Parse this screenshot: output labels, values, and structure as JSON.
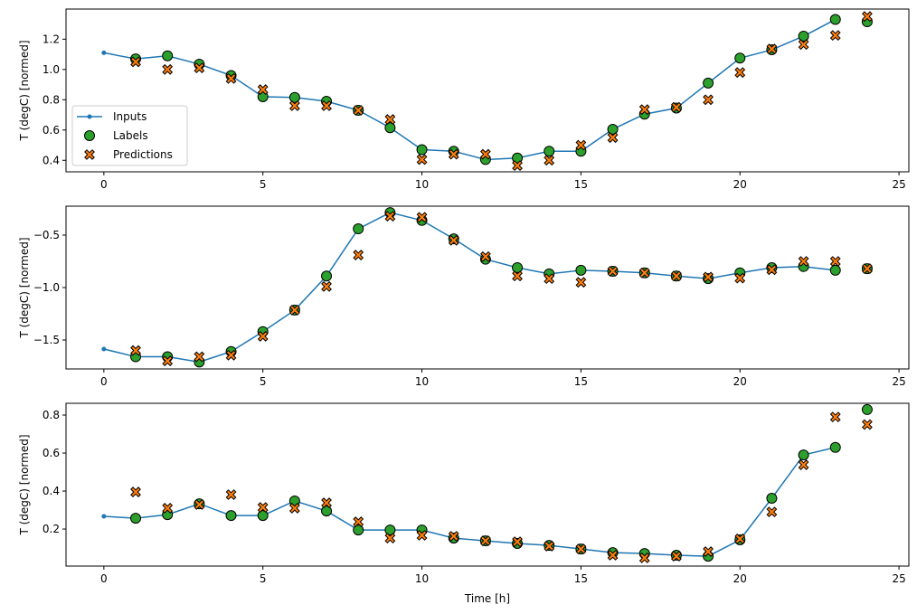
{
  "chart_data": [
    {
      "type": "line",
      "ylabel": "T (degC) [normed]",
      "xlabel": "",
      "xlim": [
        -1.19,
        25.31
      ],
      "ylim": [
        0.324,
        1.399
      ],
      "xticks": [
        0,
        5,
        10,
        15,
        20,
        25
      ],
      "yticks": [
        0.4,
        0.6,
        0.8,
        1.0,
        1.2
      ],
      "ytick_labels": [
        "0.4",
        "0.6",
        "0.8",
        "1.0",
        "1.2"
      ],
      "legend": {
        "placement": "lower-left",
        "entries": [
          "Inputs",
          "Labels",
          "Predictions"
        ]
      },
      "series": [
        {
          "name": "Inputs",
          "x": [
            0,
            1,
            2,
            3,
            4,
            5,
            6,
            7,
            8,
            9,
            10,
            11,
            12,
            13,
            14,
            15,
            16,
            17,
            18,
            19,
            20,
            21,
            22,
            23
          ],
          "values": [
            1.11,
            1.07,
            1.09,
            1.035,
            0.96,
            0.82,
            0.815,
            0.79,
            0.73,
            0.615,
            0.47,
            0.46,
            0.405,
            0.415,
            0.46,
            0.46,
            0.605,
            0.705,
            0.745,
            0.91,
            1.075,
            1.13,
            1.22,
            1.33
          ]
        },
        {
          "name": "Labels",
          "x": [
            1,
            2,
            3,
            4,
            5,
            6,
            7,
            8,
            9,
            10,
            11,
            12,
            13,
            14,
            15,
            16,
            17,
            18,
            19,
            20,
            21,
            22,
            23,
            24
          ],
          "values": [
            1.07,
            1.09,
            1.035,
            0.96,
            0.82,
            0.815,
            0.79,
            0.73,
            0.615,
            0.47,
            0.46,
            0.405,
            0.415,
            0.46,
            0.46,
            0.605,
            0.705,
            0.745,
            0.91,
            1.075,
            1.13,
            1.22,
            1.33,
            1.315
          ]
        },
        {
          "name": "Predictions",
          "x": [
            1,
            2,
            3,
            4,
            5,
            6,
            7,
            8,
            9,
            10,
            11,
            12,
            13,
            14,
            15,
            16,
            17,
            18,
            19,
            20,
            21,
            22,
            23,
            24
          ],
          "values": [
            1.05,
            1.0,
            1.01,
            0.94,
            0.867,
            0.76,
            0.76,
            0.73,
            0.67,
            0.405,
            0.44,
            0.44,
            0.365,
            0.4,
            0.5,
            0.55,
            0.735,
            0.75,
            0.8,
            0.98,
            1.135,
            1.165,
            1.225,
            1.35
          ]
        }
      ]
    },
    {
      "type": "line",
      "ylabel": "T (degC) [normed]",
      "xlabel": "",
      "xlim": [
        -1.19,
        25.31
      ],
      "ylim": [
        -1.776,
        -0.224
      ],
      "xticks": [
        0,
        5,
        10,
        15,
        20,
        25
      ],
      "yticks": [
        -1.5,
        -1.0,
        -0.5
      ],
      "ytick_labels": [
        "−1.5",
        "−1.0",
        "−0.5"
      ],
      "series": [
        {
          "name": "Inputs",
          "x": [
            0,
            1,
            2,
            3,
            4,
            5,
            6,
            7,
            8,
            9,
            10,
            11,
            12,
            13,
            14,
            15,
            16,
            17,
            18,
            19,
            20,
            21,
            22,
            23
          ],
          "values": [
            -1.586,
            -1.66,
            -1.66,
            -1.71,
            -1.61,
            -1.42,
            -1.215,
            -0.89,
            -0.44,
            -0.285,
            -0.36,
            -0.535,
            -0.73,
            -0.81,
            -0.87,
            -0.835,
            -0.845,
            -0.86,
            -0.89,
            -0.915,
            -0.86,
            -0.81,
            -0.8,
            -0.835
          ]
        },
        {
          "name": "Labels",
          "x": [
            1,
            2,
            3,
            4,
            5,
            6,
            7,
            8,
            9,
            10,
            11,
            12,
            13,
            14,
            15,
            16,
            17,
            18,
            19,
            20,
            21,
            22,
            23,
            24
          ],
          "values": [
            -1.66,
            -1.66,
            -1.71,
            -1.61,
            -1.42,
            -1.215,
            -0.89,
            -0.44,
            -0.285,
            -0.36,
            -0.535,
            -0.73,
            -0.81,
            -0.87,
            -0.835,
            -0.845,
            -0.86,
            -0.89,
            -0.915,
            -0.86,
            -0.81,
            -0.8,
            -0.835,
            -0.82
          ]
        },
        {
          "name": "Predictions",
          "x": [
            1,
            2,
            3,
            4,
            5,
            6,
            7,
            8,
            9,
            10,
            11,
            12,
            13,
            14,
            15,
            16,
            17,
            18,
            19,
            20,
            21,
            22,
            23,
            24
          ],
          "values": [
            -1.6,
            -1.7,
            -1.66,
            -1.645,
            -1.465,
            -1.215,
            -0.99,
            -0.69,
            -0.32,
            -0.33,
            -0.55,
            -0.705,
            -0.89,
            -0.915,
            -0.95,
            -0.845,
            -0.86,
            -0.89,
            -0.9,
            -0.91,
            -0.83,
            -0.75,
            -0.75,
            -0.82
          ]
        }
      ]
    },
    {
      "type": "line",
      "ylabel": "T (degC) [normed]",
      "xlabel": "Time [h]",
      "xlim": [
        -1.19,
        25.31
      ],
      "ylim": [
        0.005,
        0.862
      ],
      "xticks": [
        0,
        5,
        10,
        15,
        20,
        25
      ],
      "yticks": [
        0.2,
        0.4,
        0.6,
        0.8
      ],
      "ytick_labels": [
        "0.2",
        "0.4",
        "0.6",
        "0.8"
      ],
      "series": [
        {
          "name": "Inputs",
          "x": [
            0,
            1,
            2,
            3,
            4,
            5,
            6,
            7,
            8,
            9,
            10,
            11,
            12,
            13,
            14,
            15,
            16,
            17,
            18,
            19,
            20,
            21,
            22,
            23
          ],
          "values": [
            0.267,
            0.257,
            0.276,
            0.333,
            0.271,
            0.271,
            0.348,
            0.295,
            0.195,
            0.195,
            0.195,
            0.152,
            0.138,
            0.124,
            0.114,
            0.095,
            0.076,
            0.071,
            0.062,
            0.057,
            0.143,
            0.362,
            0.59,
            0.63
          ]
        },
        {
          "name": "Labels",
          "x": [
            1,
            2,
            3,
            4,
            5,
            6,
            7,
            8,
            9,
            10,
            11,
            12,
            13,
            14,
            15,
            16,
            17,
            18,
            19,
            20,
            21,
            22,
            23,
            24
          ],
          "values": [
            0.257,
            0.276,
            0.333,
            0.271,
            0.271,
            0.348,
            0.295,
            0.195,
            0.195,
            0.195,
            0.152,
            0.138,
            0.124,
            0.114,
            0.095,
            0.076,
            0.071,
            0.062,
            0.057,
            0.143,
            0.362,
            0.59,
            0.63,
            0.829
          ]
        },
        {
          "name": "Predictions",
          "x": [
            1,
            2,
            3,
            4,
            5,
            6,
            7,
            8,
            9,
            10,
            11,
            12,
            13,
            14,
            15,
            16,
            17,
            18,
            19,
            20,
            21,
            22,
            23,
            24
          ],
          "values": [
            0.395,
            0.31,
            0.329,
            0.381,
            0.314,
            0.31,
            0.338,
            0.238,
            0.152,
            0.167,
            0.162,
            0.138,
            0.133,
            0.11,
            0.095,
            0.062,
            0.048,
            0.057,
            0.081,
            0.148,
            0.29,
            0.538,
            0.79,
            0.75
          ]
        }
      ]
    }
  ],
  "colors": {
    "inputs": "#1f77b4",
    "labels": "#2ca02c",
    "predictions": "#ff7f0e",
    "marker_edge": "#000000"
  }
}
